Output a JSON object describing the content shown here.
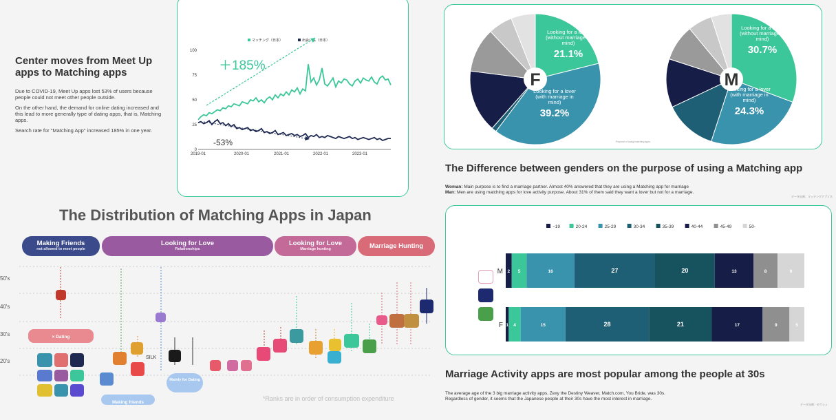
{
  "trend": {
    "title": "Center moves from Meet Up apps to Matching apps",
    "paragraphs": [
      "Due to COVID-19, Meet Up apps lost 53% of users because people could not meet other people outside.",
      "On the other hand, the demand for online dating increased and this lead to more generally type of dating apps, that is, Matching apps.",
      "Search rate for \"Matching App\" increased 185% in one year."
    ],
    "annotation_up": "＋185%",
    "annotation_down": "-53%"
  },
  "gender_purpose": {
    "heading": "The Difference between genders on the purpose of using a Matching app",
    "woman_label": "Woman:",
    "woman_text": " Main purpose is to find a marriage partner. Almost 40% answered that they are using a Matching app for marriage",
    "man_label": "Man:",
    "man_text": " Men are using matching apps for love activity purpose. About 31% of them said they want a lover but not for a marriage.",
    "source_note": "データ出典：マッチングアプリ大",
    "chart_note": "Purpose of using matching apps",
    "female_letter": "F",
    "male_letter": "M",
    "female_slice1_text": "Looking for a lover (without marriage in mind)",
    "female_slice1_pct": "21.1%",
    "female_slice2_text": "Looking for a lover (with marriage in mind)",
    "female_slice2_pct": "39.2%",
    "male_slice1_text": "Looking for a lover (without marriage in mind)",
    "male_slice1_pct": "30.7%",
    "male_slice2_text": "Looking for a lover (with marriage in mind)",
    "male_slice2_pct": "24.3%"
  },
  "distribution": {
    "heading": "The Distribution of Matching Apps in Japan",
    "categories": [
      {
        "label": "Making Friends",
        "sub": "not allowed to meet people",
        "color": "#3b4a8a"
      },
      {
        "label": "Looking for Love",
        "sub": "Relationships",
        "color": "#9a5aa0"
      },
      {
        "label": "Looking for Love",
        "sub": "Marriage hunting",
        "color": "#c46a98"
      },
      {
        "label": "Marriage Hunting",
        "sub": "",
        "color": "#d96a78"
      }
    ],
    "age_ticks": [
      "50's",
      "40's",
      "30's",
      "20's"
    ],
    "dating_label": "× Dating",
    "mainly_label": "Mainly for Dating",
    "making_friends_label": "Making friends",
    "silk_label": "SILK",
    "footnote": "*Ranks are in order of consumption expenditure"
  },
  "age_section": {
    "heading": "Marriage Activity apps are most popular among the people at 30s",
    "body": [
      "The average age of the 3 big marriage activity apps,  Zexy the Destiny Weaver, Match.com, You Bride, was 30s.",
      "Regardless of gender, it seems that the Japanese people at their 30s have the most interest in marriage."
    ],
    "source_note": "データ出典：ゼクシィ",
    "m_label": "M",
    "f_label": "F"
  },
  "chart_data": [
    {
      "type": "line",
      "legend": [
        "マッチング（日本）",
        "出会い系（日本）"
      ],
      "legend_placement": "top",
      "x_ticks": [
        "2019-01",
        "2020-01",
        "2021-01",
        "2022-01",
        "2023-01"
      ],
      "y_ticks": [
        0,
        25,
        50,
        75,
        100
      ],
      "ylim": [
        0,
        100
      ],
      "series": [
        {
          "name": "マッチング（日本）",
          "color": "#3cc79a",
          "values": [
            30,
            33,
            35,
            34,
            37,
            36,
            38,
            40,
            39,
            42,
            41,
            44,
            43,
            46,
            45,
            44,
            48,
            47,
            46,
            50,
            49,
            52,
            48,
            50,
            47,
            51,
            53,
            50,
            55,
            52,
            56,
            54,
            58,
            55,
            60,
            58,
            62,
            56,
            61,
            59,
            86,
            68,
            72,
            65,
            70,
            82,
            66,
            64,
            68,
            72,
            63,
            69,
            67,
            71,
            70,
            66,
            64,
            69,
            71,
            67,
            72,
            70,
            69,
            73,
            68,
            66,
            72,
            74,
            70,
            71,
            65
          ]
        },
        {
          "name": "出会い系（日本）",
          "color": "#1f2a52",
          "values": [
            27,
            28,
            26,
            27,
            29,
            25,
            28,
            30,
            26,
            27,
            24,
            26,
            23,
            25,
            21,
            22,
            20,
            21,
            22,
            19,
            20,
            18,
            19,
            21,
            17,
            18,
            16,
            17,
            19,
            15,
            16,
            17,
            14,
            15,
            16,
            14,
            15,
            13,
            14,
            16,
            12,
            14,
            13,
            15,
            12,
            13,
            12,
            14,
            13,
            12,
            11,
            13,
            12,
            11,
            12,
            13,
            11,
            12,
            10,
            11,
            12,
            11,
            10,
            11,
            12,
            10,
            11,
            9,
            10,
            11,
            11
          ]
        }
      ]
    },
    {
      "type": "pie",
      "title": "F",
      "slices": [
        {
          "label": "Looking for a lover (without marriage in mind)",
          "value": 21.1,
          "color": "#3cc79a"
        },
        {
          "label": "Looking for a lover (with marriage in mind)",
          "value": 39.2,
          "color": "#3a93ad"
        },
        {
          "label": "",
          "value": 1.2,
          "color": "#1e5f75"
        },
        {
          "label": "",
          "value": 15.5,
          "color": "#161d47"
        },
        {
          "label": "",
          "value": 11.0,
          "color": "#9a9a9a"
        },
        {
          "label": "",
          "value": 6.0,
          "color": "#c8c8c8"
        },
        {
          "label": "",
          "value": 6.0,
          "color": "#e2e2e2"
        }
      ]
    },
    {
      "type": "pie",
      "title": "M",
      "slices": [
        {
          "label": "Looking for a lover (without marriage in mind)",
          "value": 30.7,
          "color": "#3cc79a"
        },
        {
          "label": "Looking for a lover (with marriage in mind)",
          "value": 24.3,
          "color": "#3a93ad"
        },
        {
          "label": "",
          "value": 13.0,
          "color": "#1e5f75"
        },
        {
          "label": "",
          "value": 12.0,
          "color": "#161d47"
        },
        {
          "label": "",
          "value": 9.0,
          "color": "#9a9a9a"
        },
        {
          "label": "",
          "value": 6.0,
          "color": "#c8c8c8"
        },
        {
          "label": "",
          "value": 5.0,
          "color": "#e2e2e2"
        }
      ]
    },
    {
      "type": "bar",
      "stacked": true,
      "orientation": "horizontal",
      "categories": [
        "M",
        "F"
      ],
      "legend_placement": "top",
      "series": [
        {
          "name": "~19",
          "color": "#161d47",
          "values": [
            2,
            1
          ]
        },
        {
          "name": "20-24",
          "color": "#3cc79a",
          "values": [
            5,
            4
          ]
        },
        {
          "name": "25-29",
          "color": "#3a93ad",
          "values": [
            16,
            15
          ]
        },
        {
          "name": "30-34",
          "color": "#1e5f75",
          "values": [
            27,
            28
          ]
        },
        {
          "name": "35-39",
          "color": "#17525f",
          "values": [
            20,
            21
          ]
        },
        {
          "name": "40-44",
          "color": "#161d47",
          "values": [
            13,
            17
          ]
        },
        {
          "name": "45-49",
          "color": "#8f8f8f",
          "values": [
            8,
            9
          ]
        },
        {
          "name": "50-",
          "color": "#d6d6d6",
          "values": [
            9,
            5
          ]
        }
      ]
    }
  ]
}
